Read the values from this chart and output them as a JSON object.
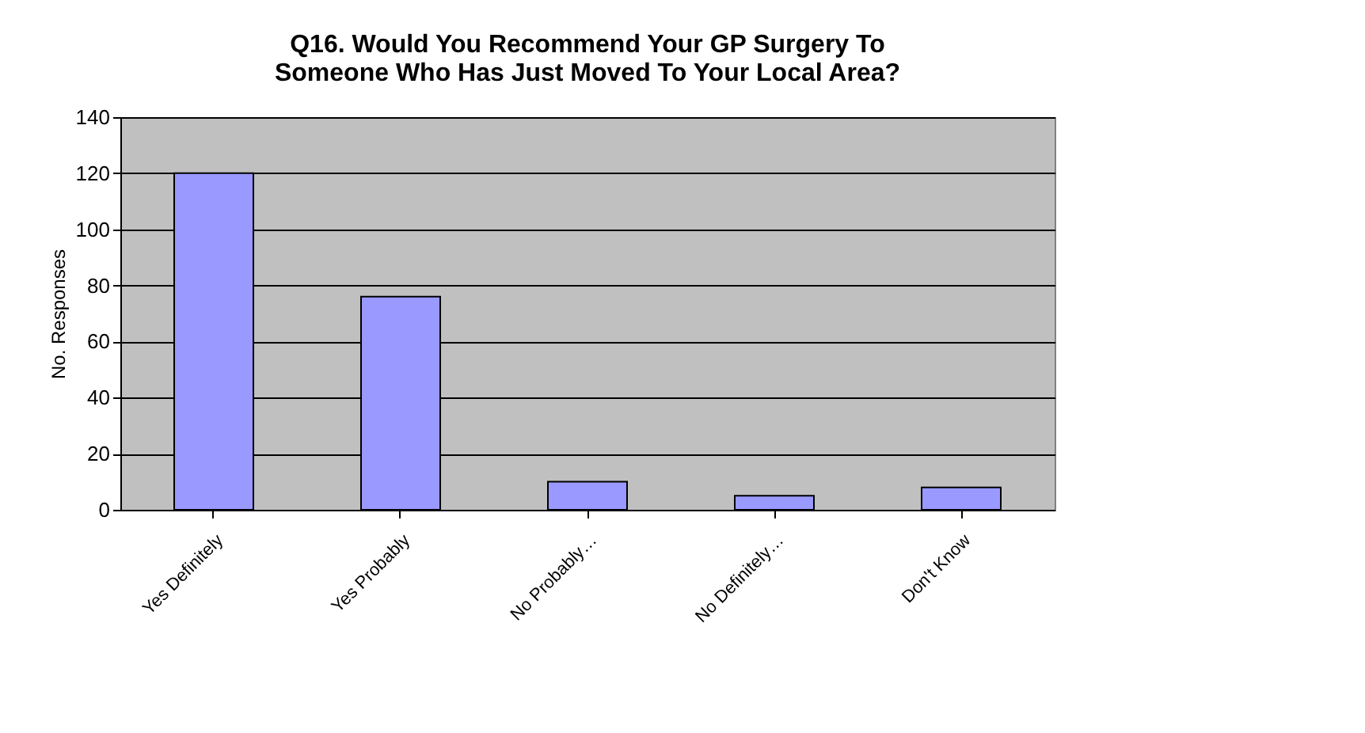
{
  "chart_data": {
    "type": "bar",
    "title": [
      "Q16. Would You Recommend Your GP Surgery To",
      "Someone Who Has Just Moved To Your Local Area?"
    ],
    "ylabel": "No. Responses",
    "categories": [
      "Yes Definitely",
      "Yes Probably",
      "No Probably…",
      "No Definitely…",
      "Don't Know"
    ],
    "values": [
      120,
      76,
      10,
      5,
      8
    ],
    "color": "#9999ff",
    "ylim": [
      0,
      140
    ],
    "yticks": [
      0,
      20,
      40,
      60,
      80,
      100,
      120,
      140
    ],
    "grid": "y"
  }
}
